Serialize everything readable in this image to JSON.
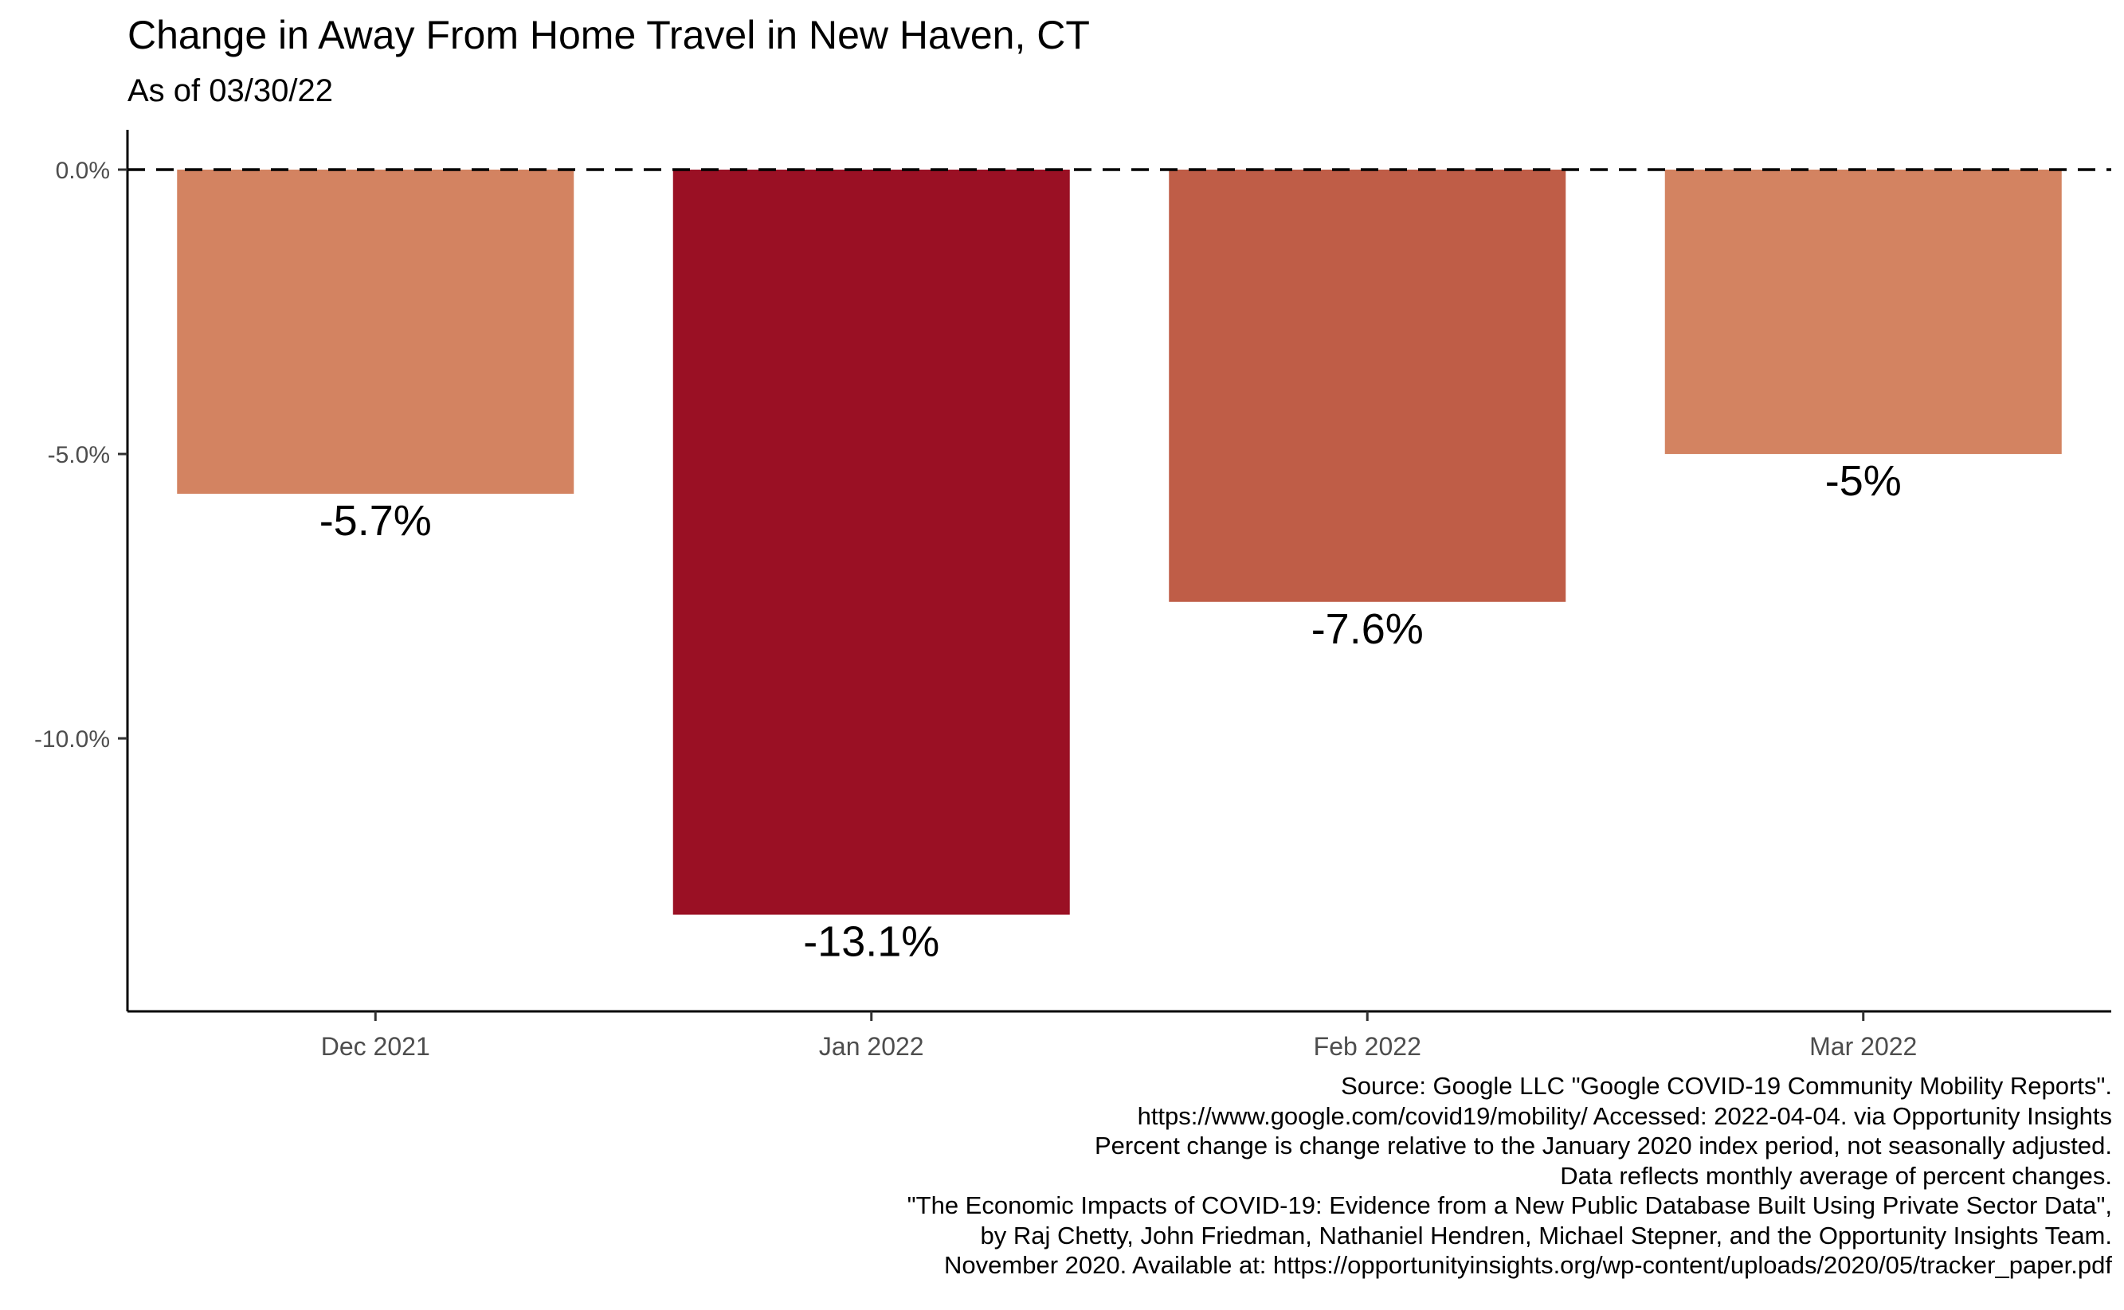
{
  "chart_data": {
    "type": "bar",
    "title": "Change in Away From Home Travel in New Haven, CT",
    "subtitle": "As of 03/30/22",
    "xlabel": "",
    "ylabel": "",
    "categories": [
      "Dec 2021",
      "Jan 2022",
      "Feb 2022",
      "Mar 2022"
    ],
    "values": [
      -5.7,
      -13.1,
      -7.6,
      -5.0
    ],
    "data_labels": [
      "-5.7%",
      "-13.1%",
      "-7.6%",
      "-5%"
    ],
    "bar_colors": [
      "#d38361",
      "#9a1024",
      "#bf5d47",
      "#d38361"
    ],
    "ylim": [
      -14.8,
      0.7
    ],
    "yticks": [
      0,
      -5,
      -10
    ],
    "ytick_labels": [
      "0.0%",
      "-5.0%",
      "-10.0%"
    ],
    "reference_line": {
      "value": 0,
      "style": "dashed",
      "color": "#000000"
    },
    "grid": false,
    "legend": "none"
  },
  "caption": [
    "Source: Google LLC \"Google COVID-19 Community Mobility Reports\".",
    "https://www.google.com/covid19/mobility/ Accessed: 2022-04-04. via Opportunity Insights",
    "Percent change is change relative to the January 2020 index period, not seasonally adjusted.",
    "Data reflects monthly average of percent changes.",
    "\"The Economic Impacts of COVID-19: Evidence from a New Public Database Built Using Private Sector Data\",",
    "by Raj Chetty, John Friedman, Nathaniel Hendren, Michael Stepner, and the Opportunity Insights Team.",
    "November 2020. Available at: https://opportunityinsights.org/wp-content/uploads/2020/05/tracker_paper.pdf"
  ]
}
